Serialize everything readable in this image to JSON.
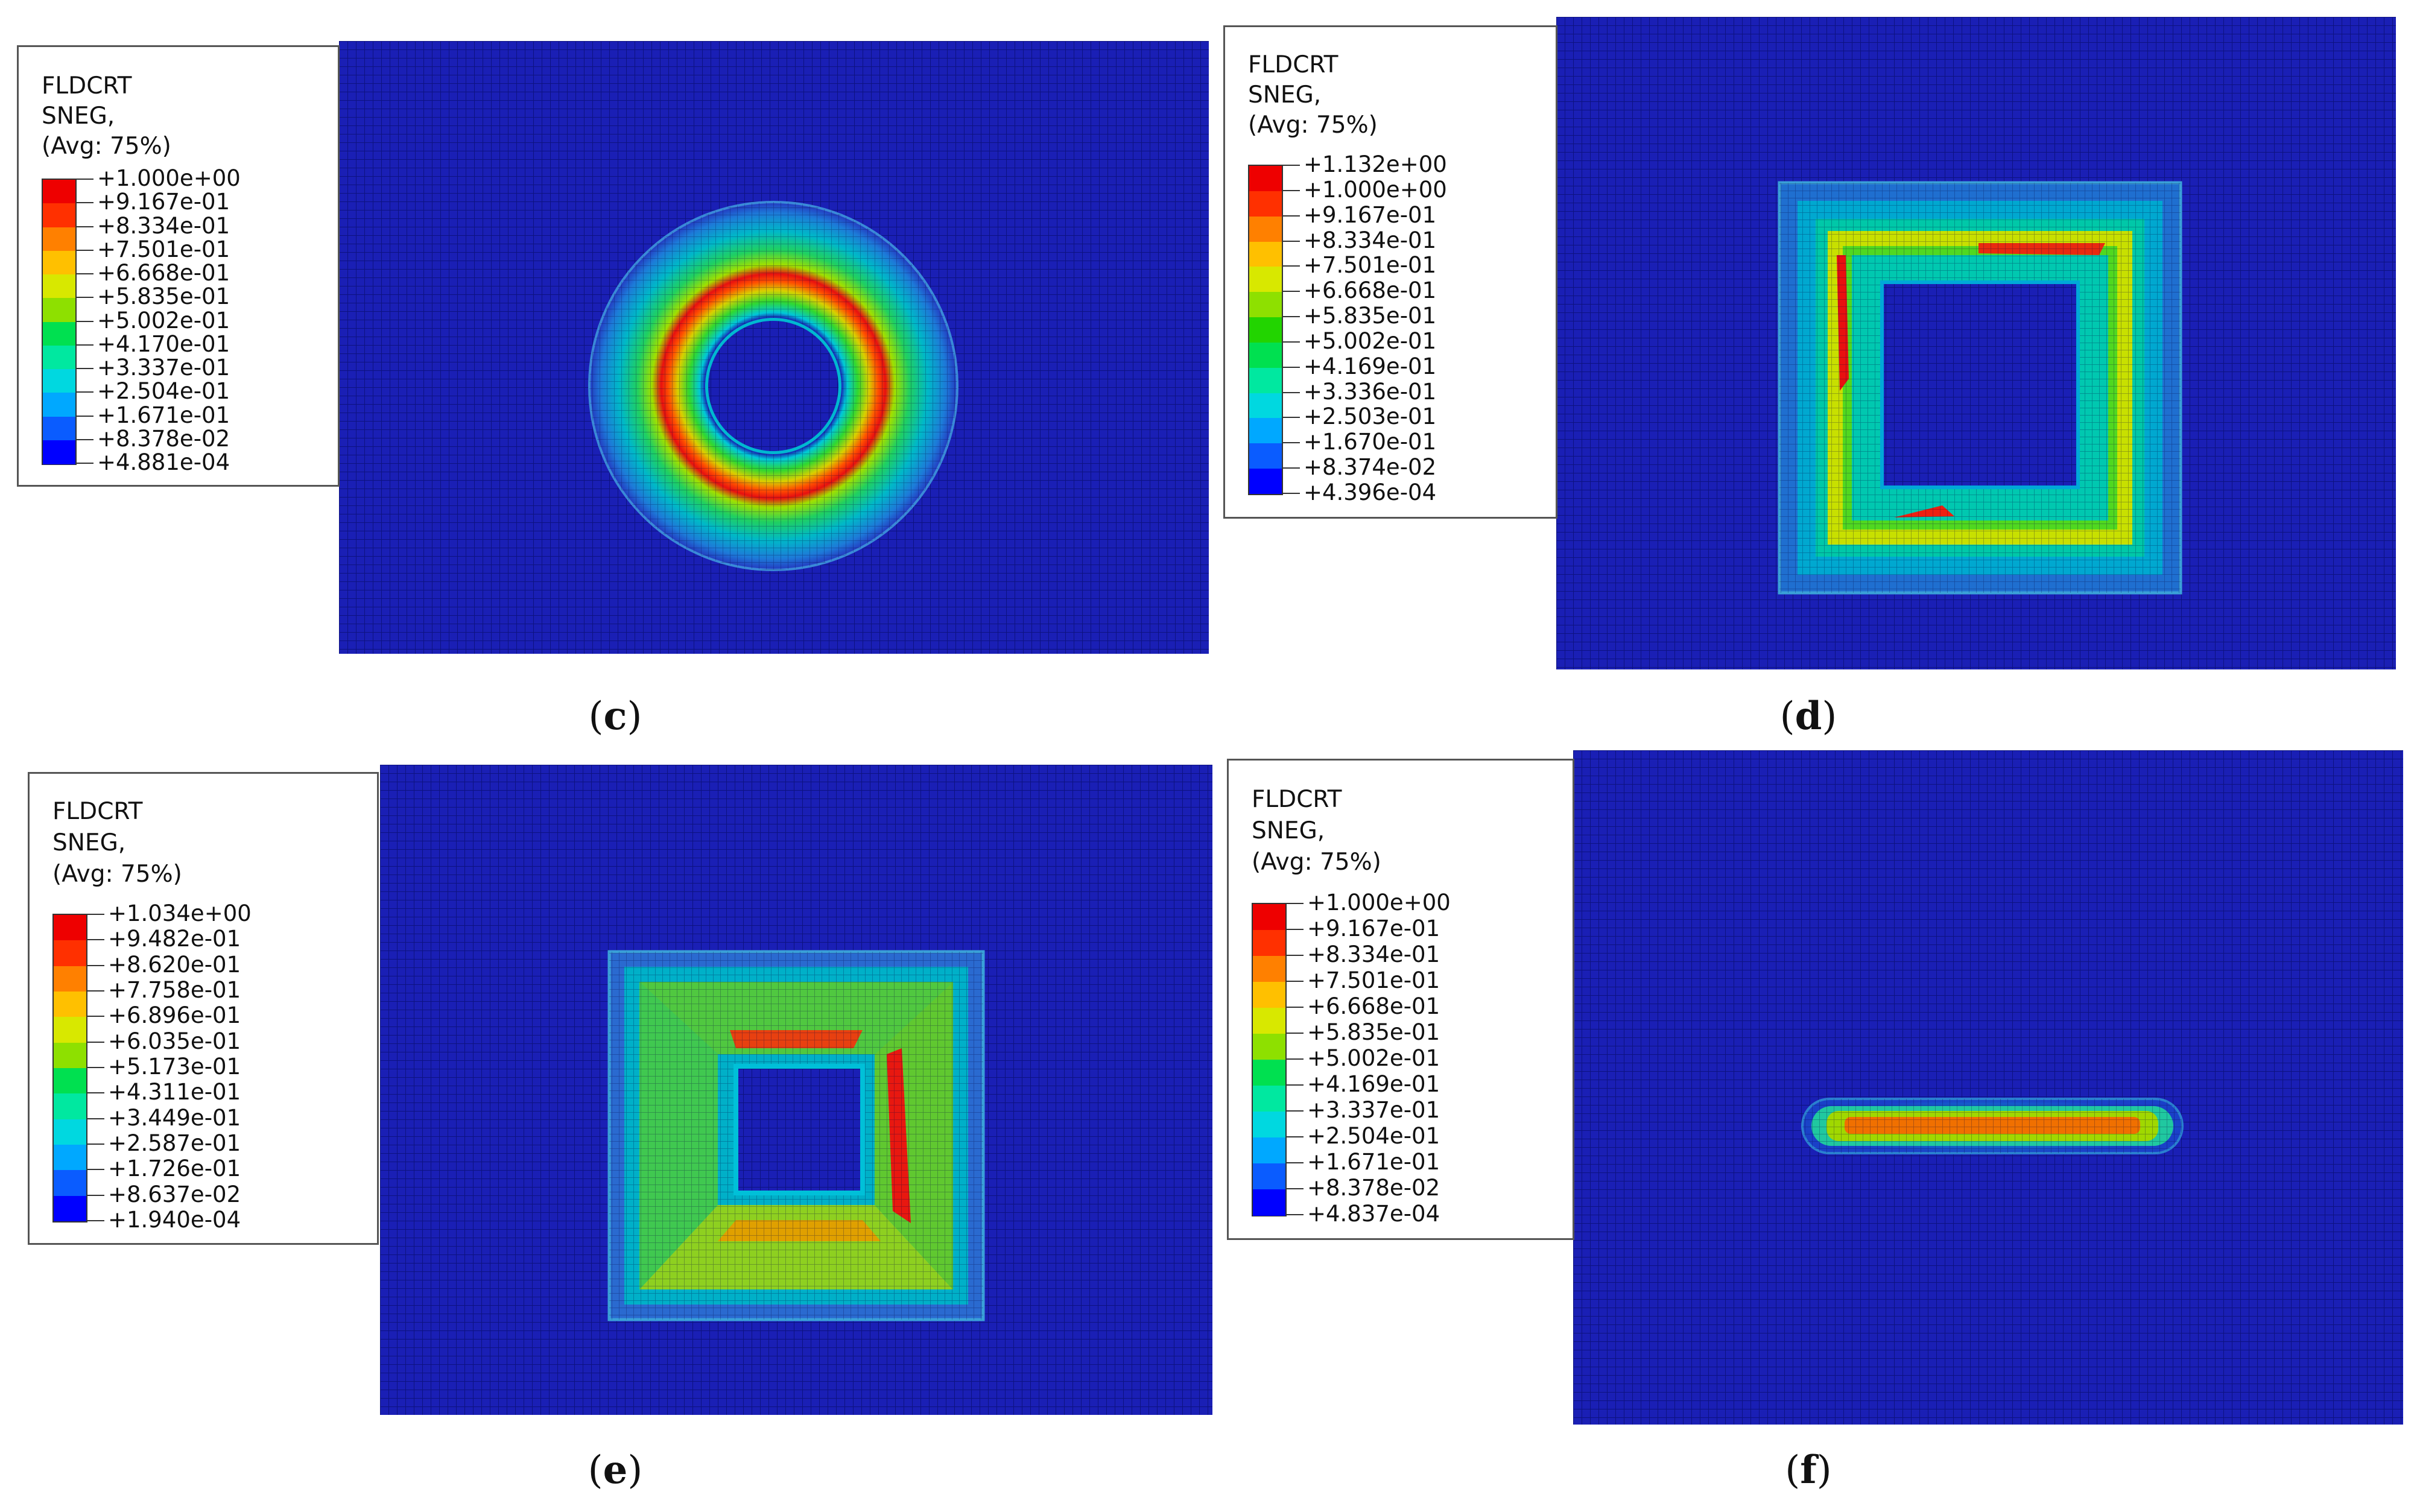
{
  "colors": {
    "mesh_background": "#1a1fb5",
    "scale": [
      "#0000ff",
      "#0a5cff",
      "#00a8ff",
      "#00d8e0",
      "#00e8a0",
      "#00e050",
      "#22d400",
      "#8ee000",
      "#d8e800",
      "#ffc000",
      "#ff8000",
      "#ff3000",
      "#ee0000"
    ]
  },
  "panels": [
    {
      "id": "c",
      "caption_letter": "c",
      "shape": "ring",
      "legend": {
        "line1": "FLDCRT",
        "line2": "SNEG,",
        "line3": "(Avg: 75%)",
        "values": [
          "+1.000e+00",
          "+9.167e-01",
          "+8.334e-01",
          "+7.501e-01",
          "+6.668e-01",
          "+5.835e-01",
          "+5.002e-01",
          "+4.170e-01",
          "+3.337e-01",
          "+2.504e-01",
          "+1.671e-01",
          "+8.378e-02",
          "+4.881e-04"
        ]
      }
    },
    {
      "id": "d",
      "caption_letter": "d",
      "shape": "square-frame",
      "legend": {
        "line1": "FLDCRT",
        "line2": "SNEG,",
        "line3": "(Avg: 75%)",
        "values": [
          "+1.132e+00",
          "+1.000e+00",
          "+9.167e-01",
          "+8.334e-01",
          "+7.501e-01",
          "+6.668e-01",
          "+5.835e-01",
          "+5.002e-01",
          "+4.169e-01",
          "+3.336e-01",
          "+2.503e-01",
          "+1.670e-01",
          "+8.374e-02",
          "+4.396e-04"
        ]
      }
    },
    {
      "id": "e",
      "caption_letter": "e",
      "shape": "square-pyramid",
      "legend": {
        "line1": "FLDCRT",
        "line2": "SNEG,",
        "line3": "(Avg: 75%)",
        "values": [
          "+1.034e+00",
          "+9.482e-01",
          "+8.620e-01",
          "+7.758e-01",
          "+6.896e-01",
          "+6.035e-01",
          "+5.173e-01",
          "+4.311e-01",
          "+3.449e-01",
          "+2.587e-01",
          "+1.726e-01",
          "+8.637e-02",
          "+1.940e-04"
        ]
      }
    },
    {
      "id": "f",
      "caption_letter": "f",
      "shape": "slot",
      "legend": {
        "line1": "FLDCRT",
        "line2": "SNEG,",
        "line3": "(Avg: 75%)",
        "values": [
          "+1.000e+00",
          "+9.167e-01",
          "+8.334e-01",
          "+7.501e-01",
          "+6.668e-01",
          "+5.835e-01",
          "+5.002e-01",
          "+4.169e-01",
          "+3.337e-01",
          "+2.504e-01",
          "+1.671e-01",
          "+8.378e-02",
          "+4.837e-04"
        ]
      }
    }
  ]
}
